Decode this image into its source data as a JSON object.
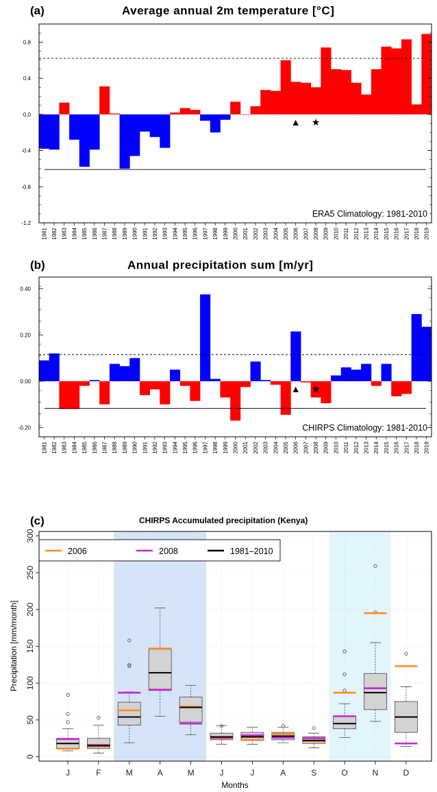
{
  "chart_data": [
    {
      "type": "bar",
      "panel_label": "(a)",
      "title": "Average annual 2m temperature [°C]",
      "annotation": "ERA5 Climatology: 1981-2010",
      "categories": [
        "1981",
        "1982",
        "1983",
        "1984",
        "1985",
        "1986",
        "1987",
        "1988",
        "1989",
        "1990",
        "1991",
        "1992",
        "1993",
        "1994",
        "1995",
        "1996",
        "1997",
        "1998",
        "1999",
        "2000",
        "2001",
        "2002",
        "2003",
        "2004",
        "2005",
        "2006",
        "2007",
        "2008",
        "2009",
        "2010",
        "2011",
        "2012",
        "2013",
        "2014",
        "2015",
        "2016",
        "2017",
        "2018",
        "2019"
      ],
      "values": [
        -0.38,
        -0.39,
        0.13,
        -0.28,
        -0.58,
        -0.39,
        0.31,
        0.01,
        -0.6,
        -0.46,
        -0.19,
        -0.25,
        -0.37,
        0.02,
        0.07,
        0.05,
        -0.07,
        -0.2,
        -0.06,
        0.14,
        0.0,
        0.09,
        0.27,
        0.26,
        0.6,
        0.36,
        0.35,
        0.3,
        0.74,
        0.5,
        0.49,
        0.35,
        0.22,
        0.5,
        0.75,
        0.73,
        0.83,
        0.11,
        0.89
      ],
      "positive_color": "#ff0000",
      "negative_color": "#0000ff",
      "upper_reference": 0.62,
      "lower_reference": -0.61,
      "ylim": [
        -1.2,
        1.0
      ],
      "yticks": [
        "0.8",
        "0.4",
        "0.0",
        "-0.4",
        "-0.8",
        "-1.2"
      ],
      "markers": [
        {
          "year": "2006",
          "symbol": "▲"
        },
        {
          "year": "2008",
          "symbol": "★"
        }
      ]
    },
    {
      "type": "bar",
      "panel_label": "(b)",
      "title": "Annual precipitation sum [m/yr]",
      "annotation": "CHIRPS Climatology: 1981-2010",
      "categories": [
        "1981",
        "1982",
        "1983",
        "1984",
        "1985",
        "1986",
        "1987",
        "1988",
        "1989",
        "1990",
        "1991",
        "1992",
        "1993",
        "1994",
        "1995",
        "1996",
        "1997",
        "1998",
        "1999",
        "2000",
        "2001",
        "2002",
        "2003",
        "2004",
        "2005",
        "2006",
        "2007",
        "2008",
        "2009",
        "2010",
        "2011",
        "2012",
        "2013",
        "2014",
        "2015",
        "2016",
        "2017",
        "2018",
        "2019"
      ],
      "values": [
        0.09,
        0.12,
        -0.12,
        -0.12,
        -0.02,
        0.005,
        -0.1,
        0.075,
        0.065,
        0.1,
        -0.06,
        -0.035,
        -0.1,
        0.05,
        -0.02,
        -0.085,
        0.375,
        0.01,
        -0.07,
        -0.17,
        -0.025,
        0.085,
        0.005,
        -0.015,
        -0.145,
        0.215,
        -0.005,
        -0.07,
        -0.095,
        0.025,
        0.06,
        0.05,
        0.075,
        -0.02,
        0.075,
        -0.065,
        -0.055,
        0.29,
        0.235
      ],
      "positive_color": "#0000ff",
      "negative_color": "#ff0000",
      "upper_reference": 0.115,
      "lower_reference": -0.117,
      "ylim": [
        -0.24,
        0.45
      ],
      "yticks": [
        "0.40",
        "0.20",
        "0.00",
        "-0.20"
      ],
      "markers": [
        {
          "year": "2006",
          "symbol": "▲"
        },
        {
          "year": "2008",
          "symbol": "★"
        }
      ]
    },
    {
      "type": "boxplot",
      "panel_label": "(c)",
      "title": "CHIRPS Accumulated precipitation (Kenya)",
      "xlabel": "Months",
      "ylabel": "Precipitation [mm/month]",
      "ylim": [
        0,
        300
      ],
      "yticks": [
        "0",
        "50",
        "100",
        "150",
        "200",
        "250",
        "300"
      ],
      "categories": [
        "J",
        "F",
        "M",
        "A",
        "M",
        "J",
        "J",
        "A",
        "S",
        "O",
        "N",
        "D"
      ],
      "shaded_spans": [
        {
          "from": 3,
          "to": 5,
          "color": "#d6e4f9"
        },
        {
          "from": 10,
          "to": 11,
          "color": "#e2f5fc"
        }
      ],
      "legend": [
        {
          "label": "2006",
          "color": "#ff8c1a"
        },
        {
          "label": "2008",
          "color": "#cc22dd"
        },
        {
          "label": "1981–2010",
          "color": "#000000"
        }
      ],
      "boxes": [
        {
          "whisker_low": 8,
          "q1": 11,
          "median": 18,
          "q3": 25,
          "whisker_high": 38,
          "outliers": [
            47,
            58,
            84
          ],
          "year_2006": 11,
          "year_2008": 24
        },
        {
          "whisker_low": 5,
          "q1": 11,
          "median": 15,
          "q3": 25,
          "whisker_high": 43,
          "outliers": [
            53
          ],
          "year_2006": 14,
          "year_2008": 16
        },
        {
          "whisker_low": 19,
          "q1": 43,
          "median": 54,
          "q3": 74,
          "whisker_high": 88,
          "outliers": [
            123,
            125,
            158
          ],
          "year_2006": 63,
          "year_2008": 87
        },
        {
          "whisker_low": 55,
          "q1": 90,
          "median": 114,
          "q3": 146,
          "whisker_high": 202,
          "outliers": [],
          "year_2006": 147,
          "year_2008": 91
        },
        {
          "whisker_low": 30,
          "q1": 47,
          "median": 67,
          "q3": 81,
          "whisker_high": 97,
          "outliers": [],
          "year_2006": 68,
          "year_2008": 45
        },
        {
          "whisker_low": 17,
          "q1": 23,
          "median": 27,
          "q3": 32,
          "whisker_high": 42,
          "outliers": [
            42
          ],
          "year_2006": 25,
          "year_2008": 26
        },
        {
          "whisker_low": 17,
          "q1": 22,
          "median": 27,
          "q3": 33,
          "whisker_high": 40,
          "outliers": [],
          "year_2006": 23,
          "year_2008": 29
        },
        {
          "whisker_low": 19,
          "q1": 23,
          "median": 28,
          "q3": 33,
          "whisker_high": 40,
          "outliers": [
            42
          ],
          "year_2006": 31,
          "year_2008": 26
        },
        {
          "whisker_low": 12,
          "q1": 18,
          "median": 22,
          "q3": 27,
          "whisker_high": 32,
          "outliers": [
            39
          ],
          "year_2006": 21,
          "year_2008": 25
        },
        {
          "whisker_low": 26,
          "q1": 38,
          "median": 45,
          "q3": 55,
          "whisker_high": 72,
          "outliers": [
            90,
            112,
            143
          ],
          "year_2006": 87,
          "year_2008": 55
        },
        {
          "whisker_low": 48,
          "q1": 64,
          "median": 87,
          "q3": 113,
          "whisker_high": 155,
          "outliers": [
            196,
            259
          ],
          "year_2006": 195,
          "year_2008": 93
        },
        {
          "whisker_low": 14,
          "q1": 33,
          "median": 54,
          "q3": 75,
          "whisker_high": 95,
          "outliers": [
            140
          ],
          "year_2006": 123,
          "year_2008": 18
        }
      ]
    }
  ]
}
